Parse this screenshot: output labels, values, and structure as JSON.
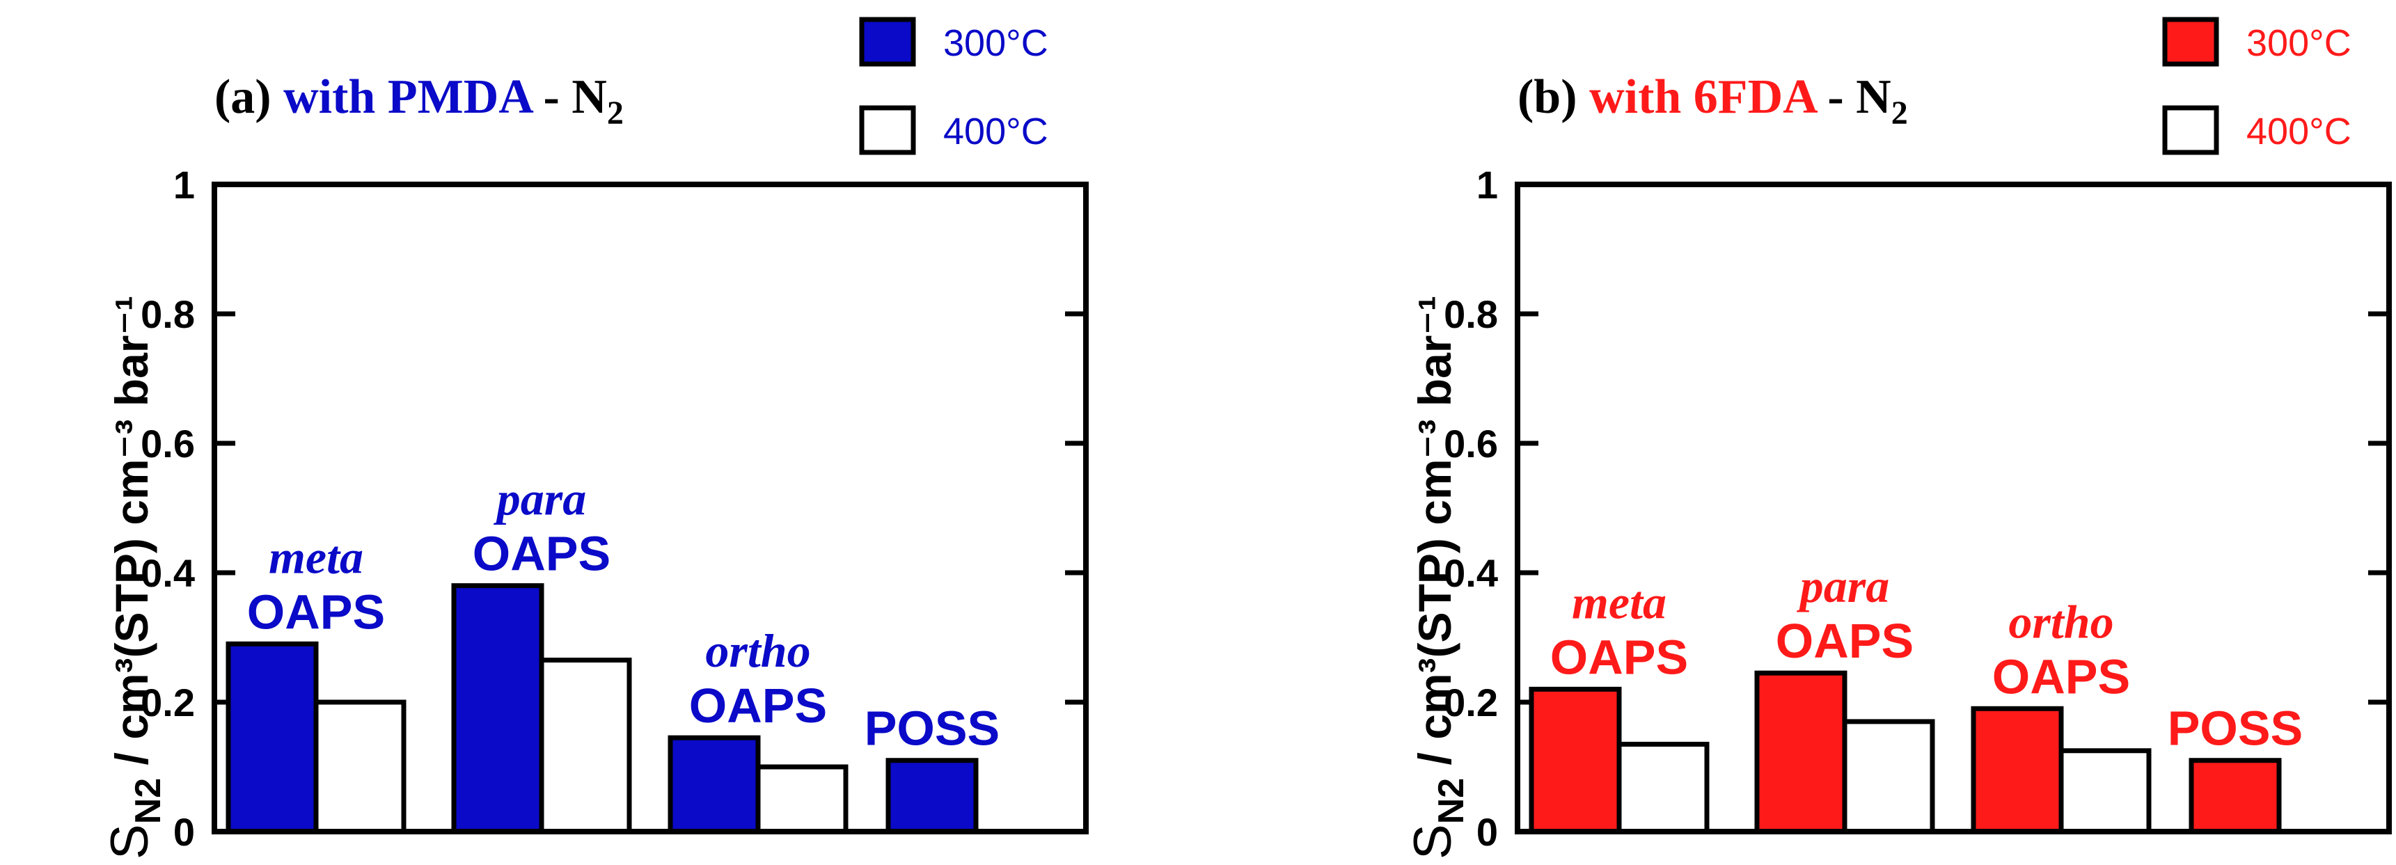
{
  "chart_data": [
    {
      "type": "bar",
      "panel_id": "a",
      "title": {
        "prefix": "(a) ",
        "colored": "with PMDA",
        "suffix": " - N",
        "subscript": "2"
      },
      "ylabel": {
        "symbol": "S",
        "subscript": "N2",
        "units": " / cm³(STP) cm⁻³ bar⁻¹"
      },
      "ylim": [
        0,
        1
      ],
      "yticks": [
        "0",
        "0.2",
        "0.4",
        "0.6",
        "0.8",
        "1"
      ],
      "ytick_values": [
        0,
        0.2,
        0.4,
        0.6,
        0.8,
        1
      ],
      "accent_color": "#0a0ac8",
      "legend": [
        {
          "label": "300°C",
          "fill": "#0a0ac8"
        },
        {
          "label": "400°C",
          "fill": "#ffffff"
        }
      ],
      "categories": [
        {
          "line1": "meta",
          "line2": "OAPS",
          "italic_first": true
        },
        {
          "line1": "para",
          "line2": "OAPS",
          "italic_first": true
        },
        {
          "line1": "ortho",
          "line2": "OAPS",
          "italic_first": true
        },
        {
          "line1": "",
          "line2": "POSS",
          "italic_first": false
        }
      ],
      "series": [
        {
          "name": "300°C",
          "values": [
            0.29,
            0.38,
            0.145,
            0.11
          ]
        },
        {
          "name": "400°C",
          "values": [
            0.2,
            0.265,
            0.1,
            null
          ]
        }
      ]
    },
    {
      "type": "bar",
      "panel_id": "b",
      "title": {
        "prefix": "(b) ",
        "colored": "with 6FDA",
        "suffix": " - N",
        "subscript": "2"
      },
      "ylabel": {
        "symbol": "S",
        "subscript": "N2",
        "units": " / cm³(STP) cm⁻³ bar⁻¹"
      },
      "ylim": [
        0,
        1
      ],
      "yticks": [
        "0",
        "0.2",
        "0.4",
        "0.6",
        "0.8",
        "1"
      ],
      "ytick_values": [
        0,
        0.2,
        0.4,
        0.6,
        0.8,
        1
      ],
      "accent_color": "#ff1a1a",
      "legend": [
        {
          "label": "300°C",
          "fill": "#ff1a1a"
        },
        {
          "label": "400°C",
          "fill": "#ffffff"
        }
      ],
      "categories": [
        {
          "line1": "meta",
          "line2": "OAPS",
          "italic_first": true
        },
        {
          "line1": "para",
          "line2": "OAPS",
          "italic_first": true
        },
        {
          "line1": "ortho",
          "line2": "OAPS",
          "italic_first": true
        },
        {
          "line1": "",
          "line2": "POSS",
          "italic_first": false
        }
      ],
      "series": [
        {
          "name": "300°C",
          "values": [
            0.22,
            0.245,
            0.19,
            0.11
          ]
        },
        {
          "name": "400°C",
          "values": [
            0.135,
            0.17,
            0.125,
            null
          ]
        }
      ]
    }
  ]
}
